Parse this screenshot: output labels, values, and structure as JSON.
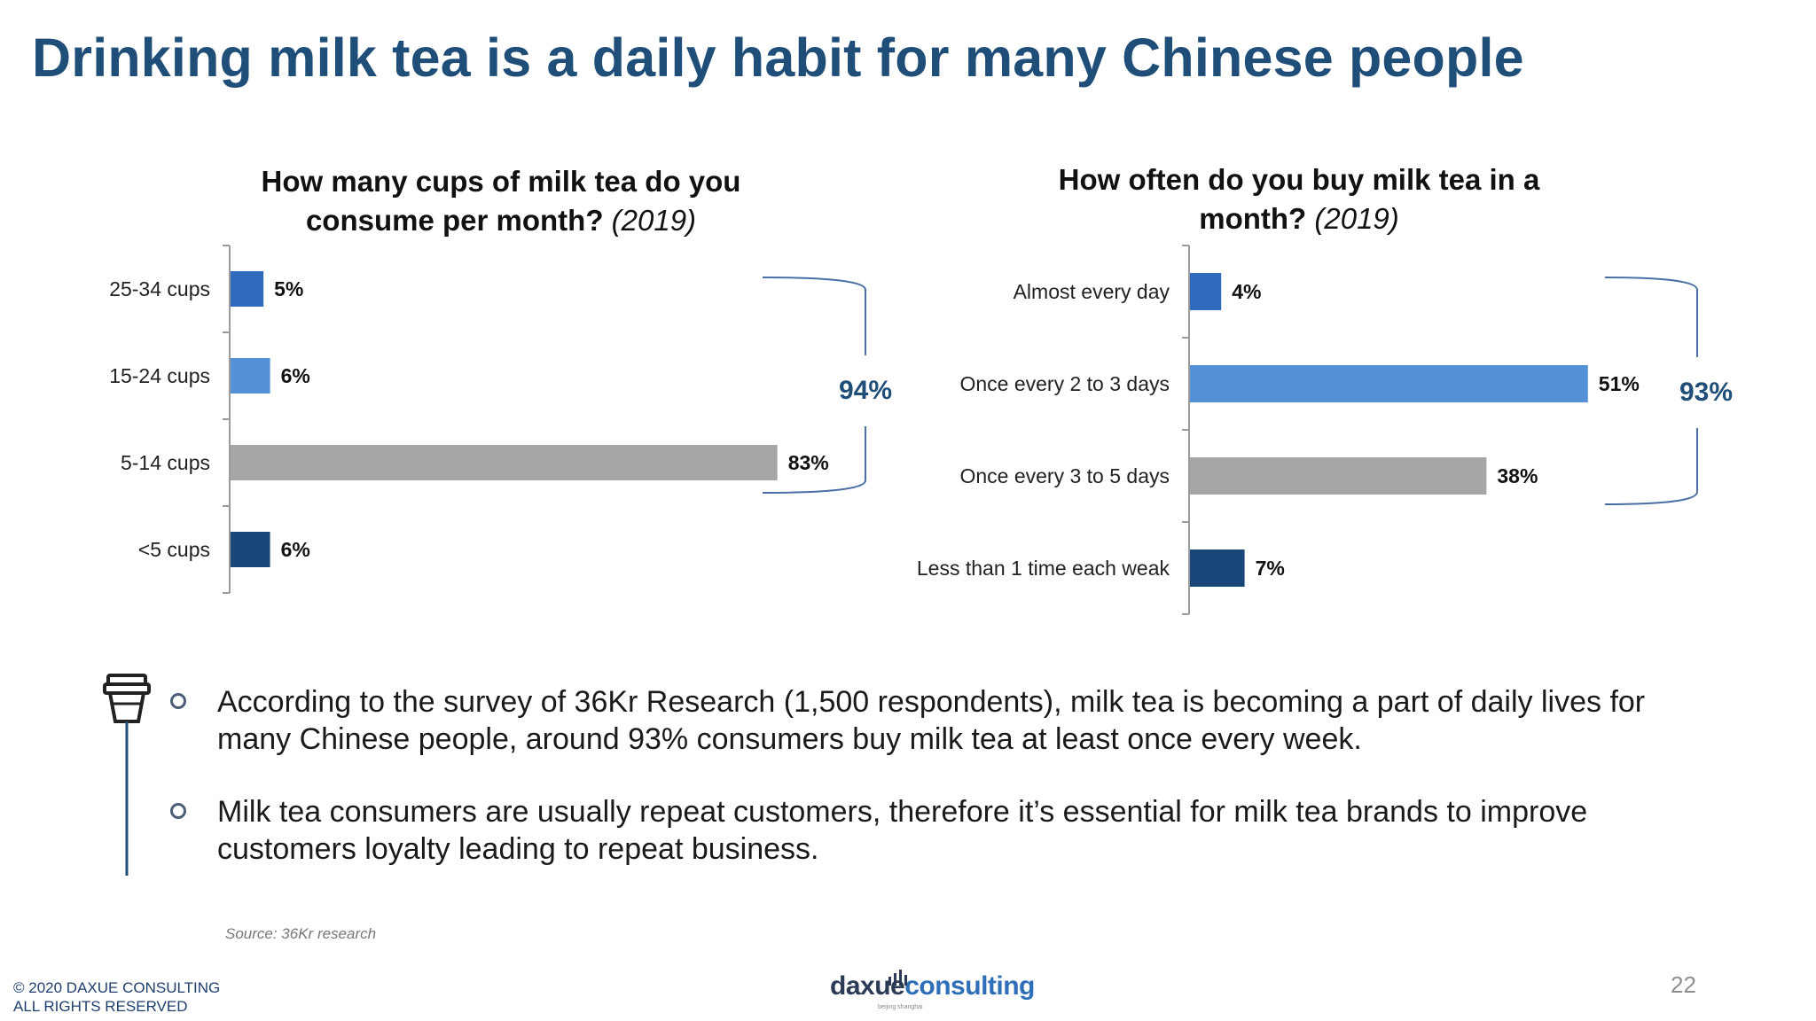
{
  "title": "Drinking milk tea is a daily habit for many Chinese people",
  "colors": {
    "title": "#1f4e79",
    "bar_blue": "#2e6bbf",
    "bar_light_blue": "#5591d9",
    "bar_gray": "#a6a6a6",
    "bar_dark_blue": "#1b4679",
    "bracket": "#4a6fa5",
    "summary_text": "#1f4e79"
  },
  "chart_data": [
    {
      "type": "bar",
      "orientation": "horizontal",
      "title": "How many cups of milk tea do you consume per month?",
      "title_year": "(2019)",
      "categories": [
        "25-34 cups",
        "15-24 cups",
        "5-14 cups",
        "<5 cups"
      ],
      "values": [
        5,
        6,
        83,
        6
      ],
      "value_labels": [
        "5%",
        "6%",
        "83%",
        "6%"
      ],
      "xlim": [
        0,
        100
      ],
      "bar_colors": [
        "#2e6bbf",
        "#5591d9",
        "#a6a6a6",
        "#1b4679"
      ],
      "bracket_label": "94%",
      "bracket_covers": [
        "25-34 cups",
        "15-24 cups",
        "5-14 cups"
      ],
      "grid": false,
      "legend": "none"
    },
    {
      "type": "bar",
      "orientation": "horizontal",
      "title": "How often do you buy milk tea in a month?",
      "title_year": "(2019)",
      "categories": [
        "Almost every day",
        "Once every 2 to 3 days",
        "Once every 3 to 5 days",
        "Less than 1 time each weak"
      ],
      "values": [
        4,
        51,
        38,
        7
      ],
      "value_labels": [
        "4%",
        "51%",
        "38%",
        "7%"
      ],
      "xlim": [
        0,
        100
      ],
      "bar_colors": [
        "#2e6bbf",
        "#5591d9",
        "#a6a6a6",
        "#1b4679"
      ],
      "bracket_label": "93%",
      "bracket_covers": [
        "Almost every day",
        "Once every 2 to 3 days",
        "Once every 3 to 5 days"
      ],
      "grid": false,
      "legend": "none"
    }
  ],
  "bullets": [
    "According to the survey of 36Kr Research (1,500 respondents), milk tea is becoming a part of daily lives for many Chinese people, around 93% consumers buy milk tea at least once every week.",
    "Milk tea consumers are usually repeat customers, therefore it’s essential for milk tea brands to improve customers loyalty leading to repeat business."
  ],
  "icon": "milk-tea-cup-icon",
  "source": "Source: 36Kr  research",
  "footer": {
    "copyright_line1": "© 2020 DAXUE CONSULTING",
    "copyright_line2": "ALL RIGHTS RESERVED",
    "logo_part1": "daxue",
    "logo_part2": "consulting",
    "logo_sub": "beijing shanghai",
    "page_number": "22"
  }
}
